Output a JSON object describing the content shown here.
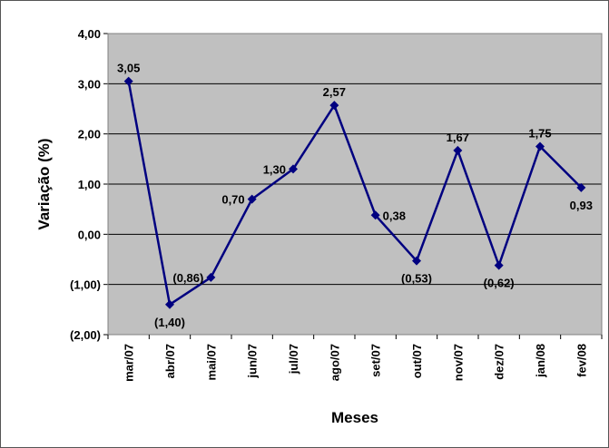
{
  "chart_data": {
    "type": "line",
    "title": "",
    "xlabel": "Meses",
    "ylabel": "Variação (%)",
    "categories": [
      "mar/07",
      "abr/07",
      "mai/07",
      "jun/07",
      "jul/07",
      "ago/07",
      "set/07",
      "out/07",
      "nov/07",
      "dez/07",
      "jan/08",
      "fev/08"
    ],
    "series": [
      {
        "name": "",
        "values": [
          3.05,
          -1.4,
          -0.86,
          0.7,
          1.3,
          2.57,
          0.38,
          -0.53,
          1.67,
          -0.62,
          1.75,
          0.93
        ],
        "labels": [
          "3,05",
          "(1,40)",
          "(0,86)",
          "0,70",
          "1,30",
          "2,57",
          "0,38",
          "(0,53)",
          "1,67",
          "(0,62)",
          "1,75",
          "0,93"
        ]
      }
    ],
    "ylim": [
      -2,
      4
    ],
    "yticks": [
      4,
      3,
      2,
      1,
      0,
      -1,
      -2
    ],
    "ytick_labels": [
      "4,00",
      "3,00",
      "2,00",
      "1,00",
      "0,00",
      "(1,00)",
      "(2,00)"
    ],
    "grid": true,
    "legend": "none",
    "colors": {
      "line": "#000080",
      "plot_background": "#c0c0c0",
      "frame_background": "#ffffff",
      "grid": "#000000"
    }
  }
}
